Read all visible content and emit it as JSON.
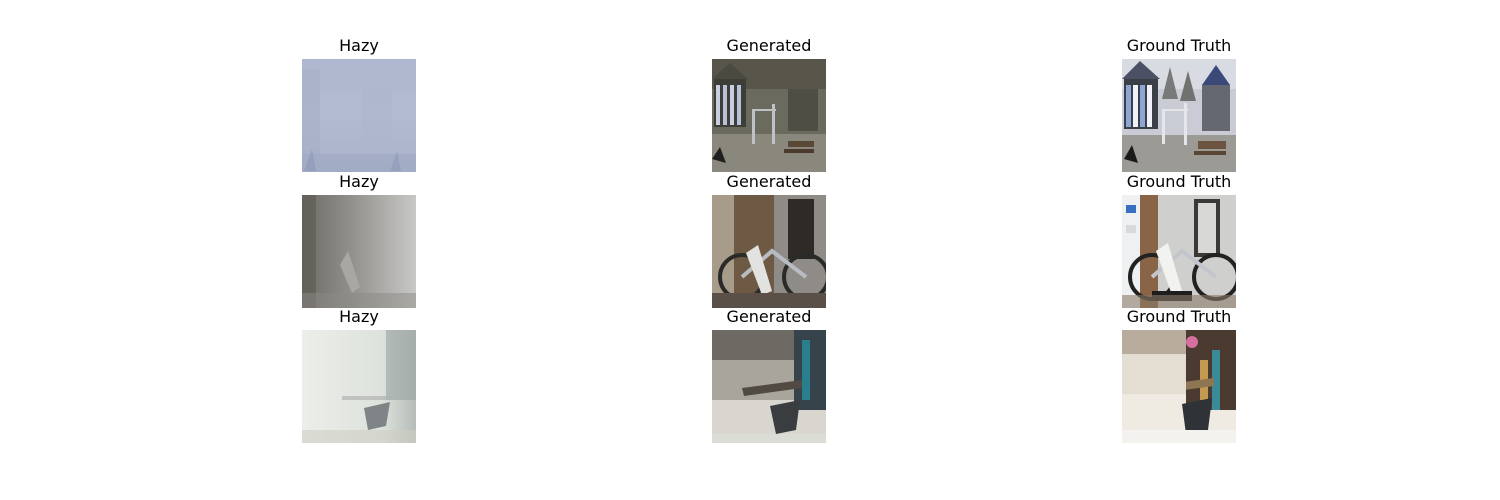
{
  "figure": {
    "rows": [
      {
        "cells": [
          {
            "title": "Hazy",
            "image": "hazy-outdoor-carousel-image"
          },
          {
            "title": "Generated",
            "image": "generated-outdoor-carousel-image"
          },
          {
            "title": "Ground Truth",
            "image": "ground-truth-outdoor-carousel-image"
          }
        ]
      },
      {
        "cells": [
          {
            "title": "Hazy",
            "image": "hazy-indoor-bicycle-image"
          },
          {
            "title": "Generated",
            "image": "generated-indoor-bicycle-image"
          },
          {
            "title": "Ground Truth",
            "image": "ground-truth-indoor-bicycle-image"
          }
        ]
      },
      {
        "cells": [
          {
            "title": "Hazy",
            "image": "hazy-indoor-chair-image"
          },
          {
            "title": "Generated",
            "image": "generated-indoor-chair-image"
          },
          {
            "title": "Ground Truth",
            "image": "ground-truth-indoor-chair-image"
          }
        ]
      }
    ]
  }
}
